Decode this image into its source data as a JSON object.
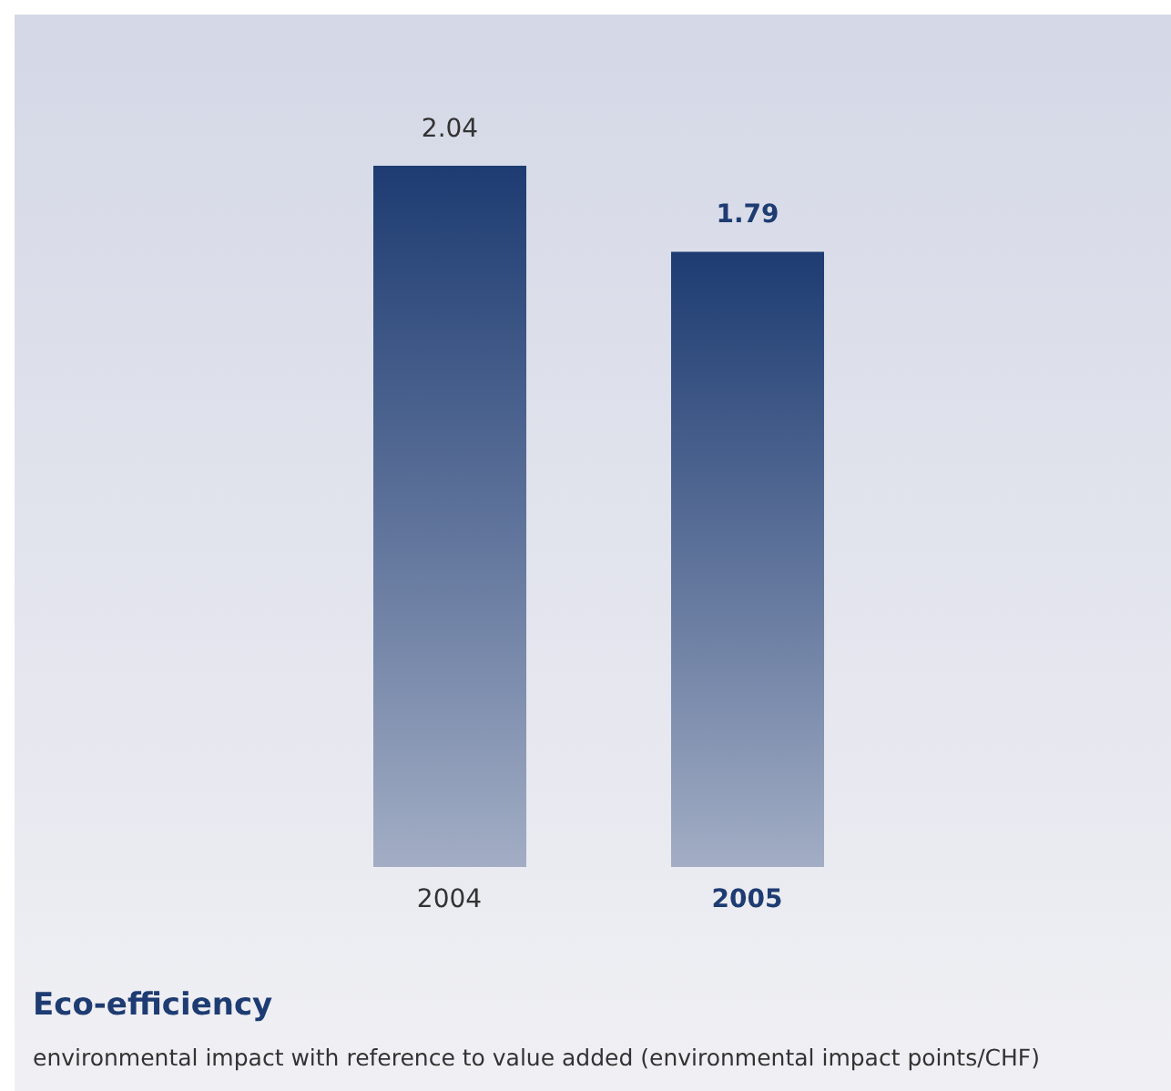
{
  "chart_data": {
    "type": "bar",
    "title": "Eco-efficiency",
    "subtitle": "environmental impact with reference to value added (environmental impact points/CHF)",
    "categories": [
      "2004",
      "2005"
    ],
    "values": [
      2.04,
      1.79
    ],
    "color": "#1e3c72",
    "data_labels": true
  }
}
